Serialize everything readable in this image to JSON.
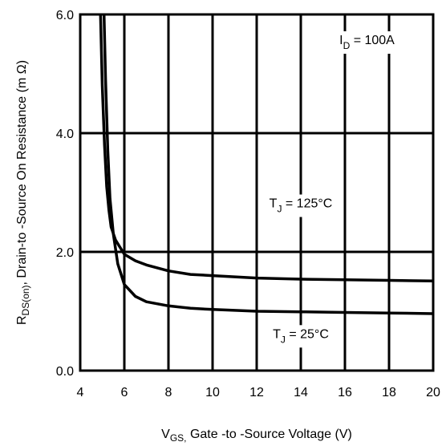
{
  "chart_data": {
    "type": "line",
    "xlabel": {
      "main": "V",
      "sub": "GS,",
      "rest": " Gate -to -Source Voltage  (V)"
    },
    "ylabel": {
      "main": "R",
      "sub": "DS(on)",
      "rest": ",  Drain-to -Source On Resistance (m Ω)"
    },
    "xlim": [
      4,
      20
    ],
    "ylim": [
      0,
      6
    ],
    "xticks": [
      4,
      6,
      8,
      10,
      12,
      14,
      16,
      18,
      20
    ],
    "xtick_labels": [
      "4",
      "6",
      "8",
      "10",
      "12",
      "14",
      "16",
      "18",
      "20"
    ],
    "yticks": [
      0,
      2,
      4,
      6
    ],
    "ytick_labels": [
      "0.0",
      "2.0",
      "4.0",
      "6.0"
    ],
    "grid": true,
    "annotations": [
      {
        "main": "I",
        "sub": "D",
        "rest": " = 100A",
        "x": 17.0,
        "y": 5.5
      },
      {
        "main": "T",
        "sub": "J",
        "rest": " = 125°C",
        "x": 14.0,
        "y": 2.75
      },
      {
        "main": "T",
        "sub": "J",
        "rest": " = 25°C",
        "x": 14.0,
        "y": 0.55
      }
    ],
    "series": [
      {
        "x": [
          4.92,
          5.0,
          5.1,
          5.2,
          5.3,
          5.4,
          5.6,
          6.0,
          6.5,
          7.0,
          8.0,
          9.0,
          10.0,
          12.0,
          14.0,
          16.0,
          18.0,
          20.0
        ],
        "y": [
          6.0,
          4.8,
          3.8,
          3.1,
          2.7,
          2.42,
          2.2,
          1.96,
          1.85,
          1.78,
          1.68,
          1.62,
          1.6,
          1.56,
          1.54,
          1.53,
          1.52,
          1.51
        ]
      },
      {
        "x": [
          5.08,
          5.15,
          5.25,
          5.35,
          5.5,
          5.7,
          6.0,
          6.5,
          7.0,
          8.0,
          9.0,
          10.0,
          12.0,
          14.0,
          16.0,
          18.0,
          20.0
        ],
        "y": [
          6.0,
          4.9,
          3.7,
          2.9,
          2.3,
          1.8,
          1.45,
          1.25,
          1.16,
          1.09,
          1.05,
          1.03,
          1.0,
          0.99,
          0.98,
          0.97,
          0.96
        ]
      }
    ]
  }
}
